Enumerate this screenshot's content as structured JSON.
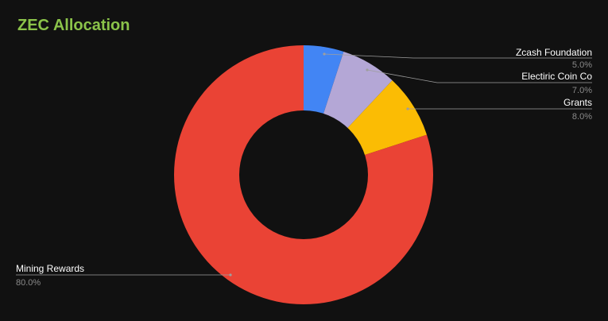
{
  "chart_data": {
    "type": "pie",
    "title": "ZEC Allocation",
    "donut": true,
    "legend": "none",
    "categories": [
      "Zcash Foundation",
      "Electiric Coin Co",
      "Grants",
      "Mining Rewards"
    ],
    "values": [
      5.0,
      7.0,
      8.0,
      80.0
    ],
    "value_labels": [
      "5.0%",
      "7.0%",
      "8.0%",
      "80.0%"
    ],
    "colors": [
      "#4285f4",
      "#b4a7d6",
      "#fbbc04",
      "#ea4335"
    ]
  },
  "colors": {
    "background": "#111111",
    "title": "#8bc34a",
    "label_text": "#ffffff",
    "value_text": "#8a8a8a",
    "leader_line": "#9e9e9e"
  }
}
